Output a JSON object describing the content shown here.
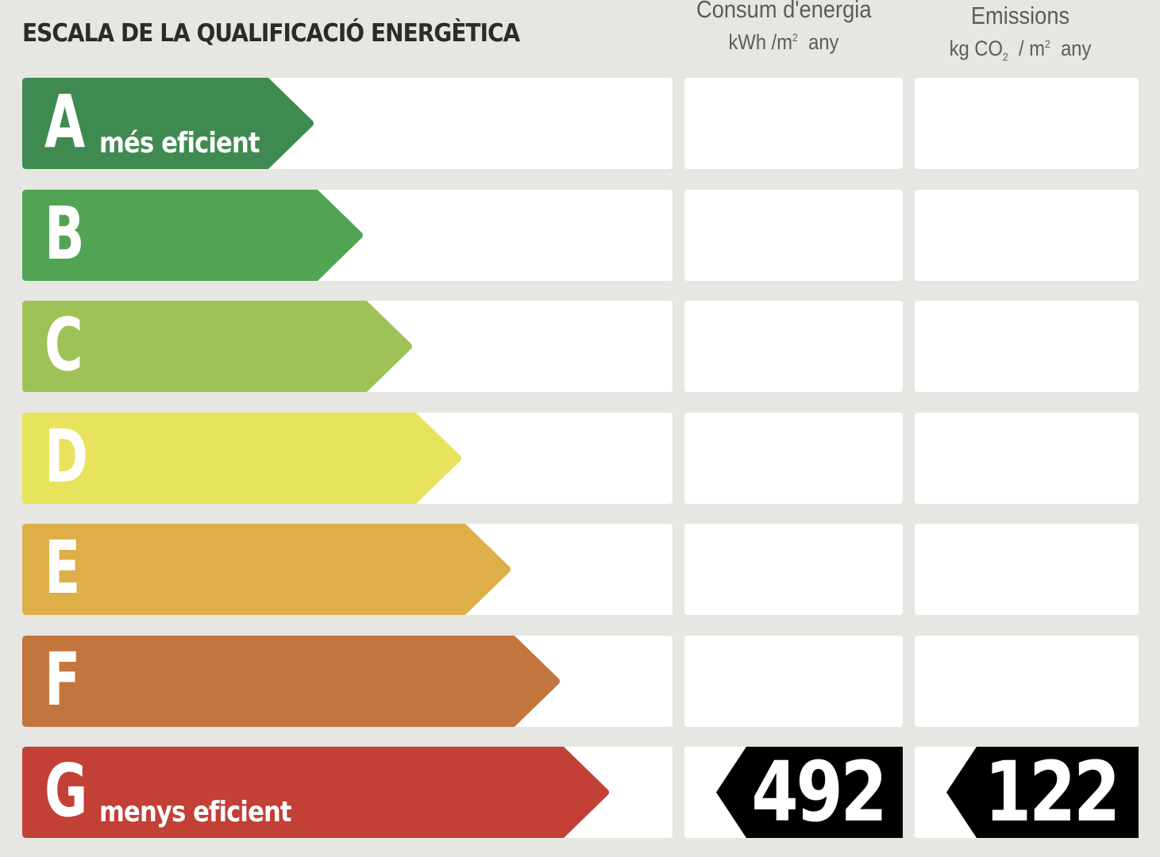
{
  "header": {
    "title": "ESCALA DE LA QUALIFICACIÓ ENERGÈTICA",
    "energy": {
      "line1": "Consum d'energia",
      "unit_a": "kWh /m",
      "unit_sup": "2",
      "unit_b": "any"
    },
    "emissions": {
      "line1": "Emissions",
      "unit_a": "kg CO",
      "unit_sub": "2",
      "unit_mid": "/ m",
      "unit_sup": "2",
      "unit_b": "any"
    }
  },
  "chart_data": {
    "type": "bar",
    "categories": [
      "A",
      "B",
      "C",
      "D",
      "E",
      "F",
      "G"
    ],
    "labels": {
      "A": "més eficient",
      "G": "menys eficient"
    },
    "colors": [
      "#3f8a50",
      "#52a454",
      "#9ec256",
      "#e8e35c",
      "#deae48",
      "#c3753e",
      "#c24036"
    ],
    "rating": "G",
    "energy_consumption": 492,
    "emissions": 122
  }
}
